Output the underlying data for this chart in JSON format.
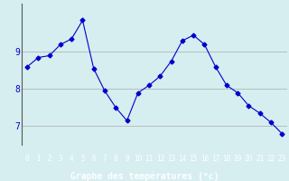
{
  "x": [
    0,
    1,
    2,
    3,
    4,
    5,
    6,
    7,
    8,
    9,
    10,
    11,
    12,
    13,
    14,
    15,
    16,
    17,
    18,
    19,
    20,
    21,
    22,
    23
  ],
  "y": [
    8.6,
    8.85,
    8.9,
    9.2,
    9.35,
    9.85,
    8.55,
    7.95,
    7.5,
    7.15,
    7.9,
    8.1,
    8.35,
    8.75,
    9.3,
    9.45,
    9.2,
    8.6,
    8.1,
    7.9,
    7.55,
    7.35,
    7.1,
    6.8
  ],
  "xlabel": "Graphe des températures (°c)",
  "xticks": [
    0,
    1,
    2,
    3,
    4,
    5,
    6,
    7,
    8,
    9,
    10,
    11,
    12,
    13,
    14,
    15,
    16,
    17,
    18,
    19,
    20,
    21,
    22,
    23
  ],
  "yticks": [
    7,
    8,
    9
  ],
  "ylim": [
    6.5,
    10.3
  ],
  "xlim": [
    -0.5,
    23.5
  ],
  "line_color": "#0000cc",
  "marker": "D",
  "marker_size": 2.5,
  "bg_color": "#d6eef0",
  "grid_color": "#aaaaaa",
  "axis_label_color": "#0000cc",
  "tick_color": "#0000cc",
  "bottom_bar_color": "#0000aa",
  "bottom_bar_text_color": "#ffffff"
}
